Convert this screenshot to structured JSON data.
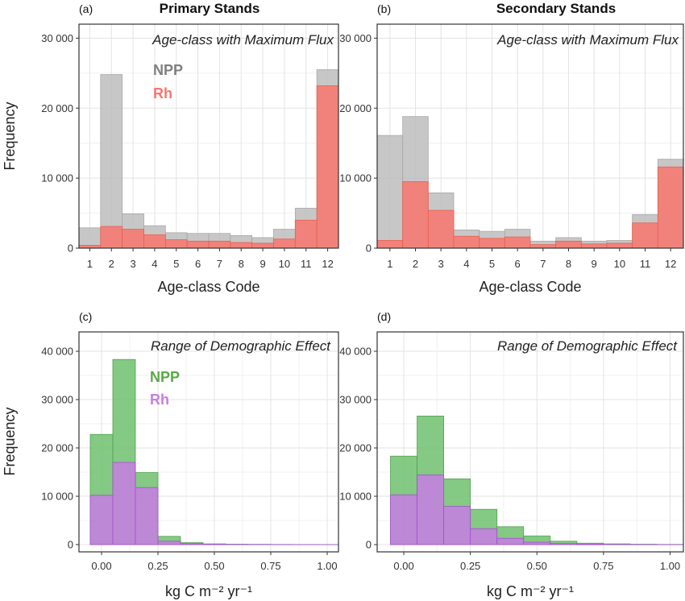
{
  "chart_data": [
    {
      "type": "bar",
      "panel_label": "(a)",
      "title": "Primary Stands",
      "annotation": "Age-class with Maximum Flux",
      "xlabel": "Age-class Code",
      "ylabel": "Frequency",
      "categories": [
        "1",
        "2",
        "3",
        "4",
        "5",
        "6",
        "7",
        "8",
        "9",
        "10",
        "11",
        "12"
      ],
      "ylim": [
        0,
        32000
      ],
      "yticks": [
        "0",
        "10 000",
        "20 000",
        "30 000"
      ],
      "ytick_values": [
        0,
        10000,
        20000,
        30000
      ],
      "legend_position": "top-left",
      "grid": true,
      "series": [
        {
          "name": "NPP",
          "color": "#bdbdbd",
          "values": [
            2900,
            24800,
            4900,
            3200,
            2200,
            2100,
            2100,
            1800,
            1500,
            2700,
            5700,
            25500
          ]
        },
        {
          "name": "Rh",
          "color": "#f8766d",
          "values": [
            400,
            3100,
            2700,
            1900,
            1200,
            1000,
            1000,
            800,
            700,
            1300,
            4000,
            23200
          ]
        }
      ]
    },
    {
      "type": "bar",
      "panel_label": "(b)",
      "title": "Secondary Stands",
      "annotation": "Age-class with Maximum Flux",
      "xlabel": "Age-class Code",
      "ylabel": "",
      "categories": [
        "1",
        "2",
        "3",
        "4",
        "5",
        "6",
        "7",
        "8",
        "9",
        "10",
        "11",
        "12"
      ],
      "ylim": [
        0,
        32000
      ],
      "yticks": [
        "0",
        "10 000",
        "20 000",
        "30 000"
      ],
      "ytick_values": [
        0,
        10000,
        20000,
        30000
      ],
      "grid": true,
      "series": [
        {
          "name": "NPP",
          "color": "#bdbdbd",
          "values": [
            16100,
            18800,
            7900,
            2600,
            2400,
            2700,
            1000,
            1500,
            1000,
            1100,
            4800,
            12700
          ]
        },
        {
          "name": "Rh",
          "color": "#f8766d",
          "values": [
            1100,
            9500,
            5400,
            1700,
            1400,
            1600,
            500,
            1000,
            600,
            700,
            3600,
            11600
          ]
        }
      ]
    },
    {
      "type": "histogram",
      "panel_label": "(c)",
      "title": "",
      "annotation": "Range of Demographic Effect",
      "xlabel": "kg C m⁻² yr⁻¹",
      "ylabel": "Frequency",
      "bin_width": 0.1,
      "bin_starts": [
        -0.05,
        0.05,
        0.15,
        0.25,
        0.35,
        0.45,
        0.55,
        0.65,
        0.75,
        0.85,
        0.95
      ],
      "xlim": [
        -0.1,
        1.05
      ],
      "xticks": [
        "0.00",
        "0.25",
        "0.50",
        "0.75",
        "1.00"
      ],
      "xtick_values": [
        0,
        0.25,
        0.5,
        0.75,
        1.0
      ],
      "ylim": [
        -1500,
        44000
      ],
      "yticks": [
        "0",
        "10 000",
        "20 000",
        "30 000",
        "40 000"
      ],
      "ytick_values": [
        0,
        10000,
        20000,
        30000,
        40000
      ],
      "legend_position": "top-right",
      "grid": true,
      "series": [
        {
          "name": "NPP",
          "color": "#6fbf6f",
          "values": [
            22800,
            38300,
            14900,
            1700,
            400,
            150,
            80,
            50,
            30,
            20,
            10
          ]
        },
        {
          "name": "Rh",
          "color": "#c77ce3",
          "values": [
            10200,
            17000,
            11800,
            700,
            200,
            80,
            40,
            30,
            20,
            10,
            5
          ]
        }
      ]
    },
    {
      "type": "histogram",
      "panel_label": "(d)",
      "title": "",
      "annotation": "Range of Demographic Effect",
      "xlabel": "kg C m⁻² yr⁻¹",
      "ylabel": "",
      "bin_width": 0.1,
      "bin_starts": [
        -0.05,
        0.05,
        0.15,
        0.25,
        0.35,
        0.45,
        0.55,
        0.65,
        0.75,
        0.85,
        0.95
      ],
      "xlim": [
        -0.1,
        1.05
      ],
      "xticks": [
        "0.00",
        "0.25",
        "0.50",
        "0.75",
        "1.00"
      ],
      "xtick_values": [
        0,
        0.25,
        0.5,
        0.75,
        1.0
      ],
      "ylim": [
        -1500,
        44000
      ],
      "yticks": [
        "0",
        "10 000",
        "20 000",
        "30 000",
        "40 000"
      ],
      "ytick_values": [
        0,
        10000,
        20000,
        30000,
        40000
      ],
      "grid": true,
      "series": [
        {
          "name": "NPP",
          "color": "#6fbf6f",
          "values": [
            18300,
            26600,
            13600,
            7300,
            3700,
            1800,
            700,
            300,
            150,
            80,
            40
          ]
        },
        {
          "name": "Rh",
          "color": "#c77ce3",
          "values": [
            10300,
            14400,
            7900,
            3300,
            1300,
            500,
            200,
            100,
            50,
            30,
            15
          ]
        }
      ]
    }
  ]
}
